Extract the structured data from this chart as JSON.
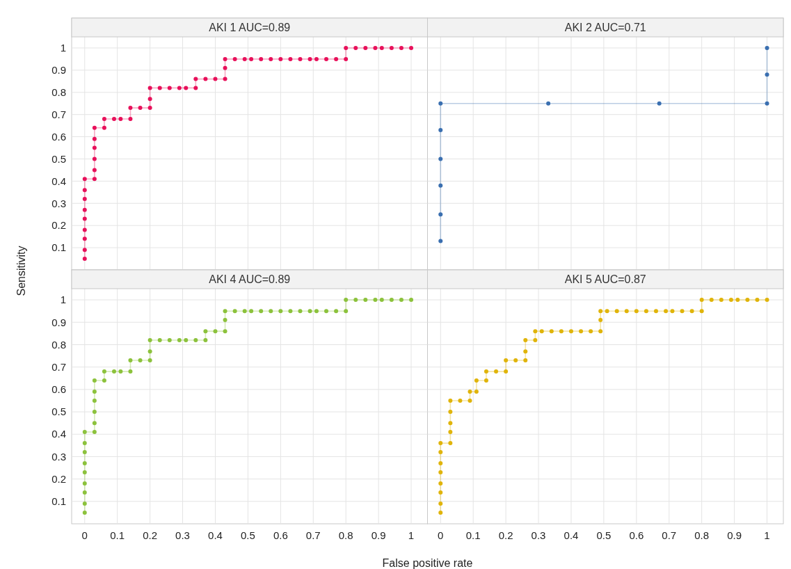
{
  "chart_data": [
    {
      "type": "line",
      "title": "AKI 1 AUC=0.89",
      "ylabel": "Sensitivity",
      "xlim": [
        -0.04,
        1.05
      ],
      "ylim": [
        0,
        1.05
      ],
      "xticks": [
        0,
        0.1,
        0.2,
        0.3,
        0.4,
        0.5,
        0.6,
        0.7,
        0.8,
        0.9,
        1
      ],
      "yticks": [
        0.1,
        0.2,
        0.3,
        0.4,
        0.5,
        0.6,
        0.7,
        0.8,
        0.9,
        1
      ],
      "grid": true,
      "marker": "circle",
      "tick_labels": "y",
      "series": [
        {
          "color": "#e8105a",
          "x": [
            0,
            0,
            0,
            0,
            0,
            0,
            0,
            0,
            0,
            0.03,
            0.03,
            0.03,
            0.03,
            0.03,
            0.03,
            0.06,
            0.06,
            0.09,
            0.11,
            0.14,
            0.14,
            0.17,
            0.2,
            0.2,
            0.2,
            0.23,
            0.26,
            0.29,
            0.31,
            0.34,
            0.34,
            0.37,
            0.4,
            0.43,
            0.43,
            0.43,
            0.46,
            0.49,
            0.51,
            0.54,
            0.57,
            0.6,
            0.63,
            0.66,
            0.69,
            0.71,
            0.74,
            0.77,
            0.8,
            0.8,
            0.83,
            0.86,
            0.89,
            0.91,
            0.94,
            0.97,
            1
          ],
          "values": [
            0.05,
            0.09,
            0.14,
            0.18,
            0.23,
            0.27,
            0.32,
            0.36,
            0.41,
            0.41,
            0.45,
            0.5,
            0.55,
            0.59,
            0.64,
            0.64,
            0.68,
            0.68,
            0.68,
            0.68,
            0.73,
            0.73,
            0.73,
            0.77,
            0.82,
            0.82,
            0.82,
            0.82,
            0.82,
            0.82,
            0.86,
            0.86,
            0.86,
            0.86,
            0.91,
            0.95,
            0.95,
            0.95,
            0.95,
            0.95,
            0.95,
            0.95,
            0.95,
            0.95,
            0.95,
            0.95,
            0.95,
            0.95,
            0.95,
            1,
            1,
            1,
            1,
            1,
            1,
            1,
            1
          ]
        }
      ]
    },
    {
      "type": "line",
      "title": "AKI 2 AUC=0.71",
      "xlim": [
        -0.04,
        1.05
      ],
      "ylim": [
        0,
        1.05
      ],
      "xticks": [
        0,
        0.1,
        0.2,
        0.3,
        0.4,
        0.5,
        0.6,
        0.7,
        0.8,
        0.9,
        1
      ],
      "yticks": [
        0.1,
        0.2,
        0.3,
        0.4,
        0.5,
        0.6,
        0.7,
        0.8,
        0.9,
        1
      ],
      "grid": true,
      "marker": "circle",
      "tick_labels": false,
      "series": [
        {
          "color": "#3a6fb0",
          "x": [
            0,
            0,
            0,
            0,
            0,
            0,
            0.33,
            0.67,
            1,
            1,
            1
          ],
          "values": [
            0.13,
            0.25,
            0.38,
            0.5,
            0.63,
            0.75,
            0.75,
            0.75,
            0.75,
            0.88,
            1
          ]
        }
      ]
    },
    {
      "type": "line",
      "title": "AKI 4 AUC=0.89",
      "xlabel": "False positive rate",
      "xlim": [
        -0.04,
        1.05
      ],
      "ylim": [
        0,
        1.05
      ],
      "xticks": [
        0,
        0.1,
        0.2,
        0.3,
        0.4,
        0.5,
        0.6,
        0.7,
        0.8,
        0.9,
        1
      ],
      "yticks": [
        0.1,
        0.2,
        0.3,
        0.4,
        0.5,
        0.6,
        0.7,
        0.8,
        0.9,
        1
      ],
      "grid": true,
      "marker": "circle",
      "series": [
        {
          "color": "#8cc23c",
          "x": [
            0,
            0,
            0,
            0,
            0,
            0,
            0,
            0,
            0,
            0.03,
            0.03,
            0.03,
            0.03,
            0.03,
            0.03,
            0.06,
            0.06,
            0.09,
            0.11,
            0.14,
            0.14,
            0.17,
            0.2,
            0.2,
            0.2,
            0.23,
            0.26,
            0.29,
            0.31,
            0.34,
            0.37,
            0.37,
            0.4,
            0.43,
            0.43,
            0.43,
            0.46,
            0.49,
            0.51,
            0.54,
            0.57,
            0.6,
            0.63,
            0.66,
            0.69,
            0.71,
            0.74,
            0.77,
            0.8,
            0.8,
            0.83,
            0.86,
            0.89,
            0.91,
            0.94,
            0.97,
            1
          ],
          "values": [
            0.05,
            0.09,
            0.14,
            0.18,
            0.23,
            0.27,
            0.32,
            0.36,
            0.41,
            0.41,
            0.45,
            0.5,
            0.55,
            0.59,
            0.64,
            0.64,
            0.68,
            0.68,
            0.68,
            0.68,
            0.73,
            0.73,
            0.73,
            0.77,
            0.82,
            0.82,
            0.82,
            0.82,
            0.82,
            0.82,
            0.82,
            0.86,
            0.86,
            0.86,
            0.91,
            0.95,
            0.95,
            0.95,
            0.95,
            0.95,
            0.95,
            0.95,
            0.95,
            0.95,
            0.95,
            0.95,
            0.95,
            0.95,
            0.95,
            1,
            1,
            1,
            1,
            1,
            1,
            1,
            1
          ]
        }
      ]
    },
    {
      "type": "line",
      "title": "AKI 5 AUC=0.87",
      "xlim": [
        -0.04,
        1.05
      ],
      "ylim": [
        0,
        1.05
      ],
      "xticks": [
        0,
        0.1,
        0.2,
        0.3,
        0.4,
        0.5,
        0.6,
        0.7,
        0.8,
        0.9,
        1
      ],
      "yticks": [
        0.1,
        0.2,
        0.3,
        0.4,
        0.5,
        0.6,
        0.7,
        0.8,
        0.9,
        1
      ],
      "grid": true,
      "marker": "circle",
      "tick_labels": "x",
      "series": [
        {
          "color": "#e0b40a",
          "x": [
            0,
            0,
            0,
            0,
            0,
            0,
            0,
            0,
            0.03,
            0.03,
            0.03,
            0.03,
            0.03,
            0.06,
            0.09,
            0.09,
            0.11,
            0.11,
            0.14,
            0.14,
            0.17,
            0.2,
            0.2,
            0.23,
            0.26,
            0.26,
            0.26,
            0.29,
            0.29,
            0.31,
            0.34,
            0.37,
            0.4,
            0.43,
            0.46,
            0.49,
            0.49,
            0.49,
            0.51,
            0.54,
            0.57,
            0.6,
            0.63,
            0.66,
            0.69,
            0.71,
            0.74,
            0.77,
            0.8,
            0.8,
            0.83,
            0.86,
            0.89,
            0.91,
            0.94,
            0.97,
            1
          ],
          "values": [
            0.05,
            0.09,
            0.14,
            0.18,
            0.23,
            0.27,
            0.32,
            0.36,
            0.36,
            0.41,
            0.45,
            0.5,
            0.55,
            0.55,
            0.55,
            0.59,
            0.59,
            0.64,
            0.64,
            0.68,
            0.68,
            0.68,
            0.73,
            0.73,
            0.73,
            0.77,
            0.82,
            0.82,
            0.86,
            0.86,
            0.86,
            0.86,
            0.86,
            0.86,
            0.86,
            0.86,
            0.91,
            0.95,
            0.95,
            0.95,
            0.95,
            0.95,
            0.95,
            0.95,
            0.95,
            0.95,
            0.95,
            0.95,
            0.95,
            1,
            1,
            1,
            1,
            1,
            1,
            1,
            1
          ]
        }
      ]
    }
  ]
}
